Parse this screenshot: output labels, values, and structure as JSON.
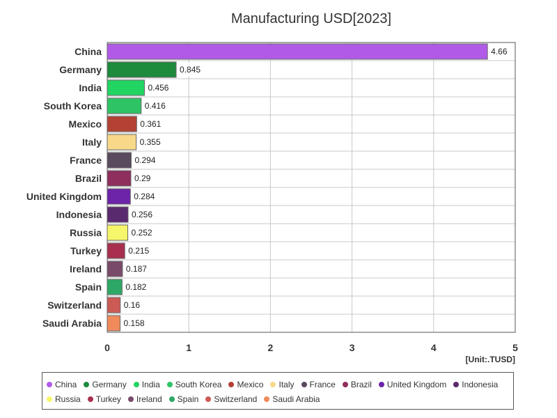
{
  "chart_data": {
    "type": "bar",
    "orientation": "horizontal",
    "title": "Manufacturing USD[2023]",
    "unit_label": "[Unit:.TUSD]",
    "xlim": [
      0,
      5
    ],
    "x_ticks": [
      "0",
      "1",
      "2",
      "3",
      "4",
      "5"
    ],
    "grid": true,
    "legend_position": "bottom",
    "categories": [
      "China",
      "Germany",
      "India",
      "South Korea",
      "Mexico",
      "Italy",
      "France",
      "Brazil",
      "United Kingdom",
      "Indonesia",
      "Russia",
      "Turkey",
      "Ireland",
      "Spain",
      "Switzerland",
      "Saudi Arabia"
    ],
    "values": [
      4.66,
      0.845,
      0.456,
      0.416,
      0.361,
      0.355,
      0.294,
      0.29,
      0.284,
      0.256,
      0.252,
      0.215,
      0.187,
      0.182,
      0.16,
      0.158
    ],
    "value_labels": [
      "4.66",
      "0.845",
      "0.456",
      "0.416",
      "0.361",
      "0.355",
      "0.294",
      "0.29",
      "0.284",
      "0.256",
      "0.252",
      "0.215",
      "0.187",
      "0.182",
      "0.16",
      "0.158"
    ],
    "colors": [
      "#b25ae8",
      "#1e8a3c",
      "#22d462",
      "#2ec466",
      "#b34234",
      "#f8d98a",
      "#5a4a5e",
      "#8e2f5e",
      "#6d24a8",
      "#5a2a6e",
      "#f6f66a",
      "#a8304e",
      "#7a4a6a",
      "#2ea866",
      "#cc5a55",
      "#f08a5a"
    ]
  }
}
